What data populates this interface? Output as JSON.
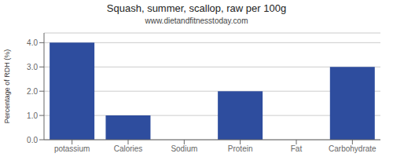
{
  "chart_data": {
    "type": "bar",
    "title": "Squash, summer, scallop, raw per 100g",
    "subtitle": "www.dietandfitnesstoday.com",
    "categories": [
      "potassium",
      "Calories",
      "Sodium",
      "Protein",
      "Fat",
      "Carbohydrate"
    ],
    "values": [
      4.0,
      1.0,
      0.0,
      2.0,
      0.0,
      3.0
    ],
    "color": "#2e4d9e",
    "ylabel": "Percentage of RDH (%)",
    "ylim": [
      0,
      4.4
    ],
    "yticks": [
      {
        "value": 0,
        "label": "0.0"
      },
      {
        "value": 1,
        "label": "1.0"
      },
      {
        "value": 2,
        "label": "2.0"
      },
      {
        "value": 3,
        "label": "3.0"
      },
      {
        "value": 4,
        "label": "4.0"
      }
    ],
    "grid": true
  }
}
